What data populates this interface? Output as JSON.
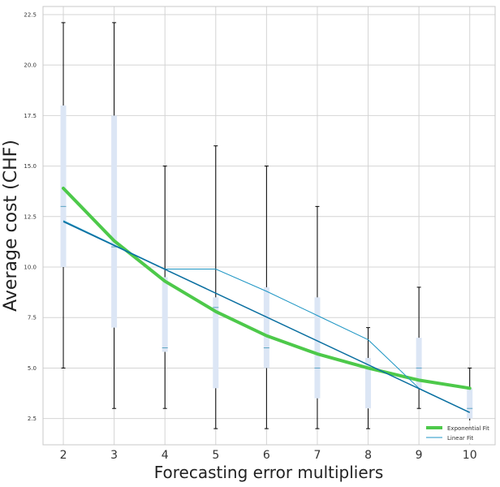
{
  "chart_data": {
    "type": "box",
    "xlabel": "Forecasting error multipliers",
    "ylabel": "Average cost (CHF)",
    "categories": [
      2,
      3,
      4,
      5,
      6,
      7,
      8,
      9,
      10
    ],
    "xlim": [
      1.6,
      10.5
    ],
    "ylim": [
      1.2,
      22.9
    ],
    "yticks": [
      2.5,
      5.0,
      7.5,
      10.0,
      12.5,
      15.0,
      17.5,
      20.0,
      22.5
    ],
    "ytick_labels": [
      "2.5",
      "5.0",
      "7.5",
      "10.0",
      "12.5",
      "15.0",
      "17.5",
      "20.0",
      "22.5"
    ],
    "grid": true,
    "legend_position": "lower-right",
    "boxes": [
      {
        "x": 2,
        "whisker_low": 5.0,
        "q1": 10.0,
        "median": 13.0,
        "q3": 18.0,
        "whisker_high": 22.1
      },
      {
        "x": 3,
        "whisker_low": 3.0,
        "q1": 7.0,
        "median": 11.0,
        "q3": 17.5,
        "whisker_high": 22.1
      },
      {
        "x": 4,
        "whisker_low": 3.0,
        "q1": 5.8,
        "median": 6.0,
        "q3": 9.5,
        "whisker_high": 15.0
      },
      {
        "x": 5,
        "whisker_low": 2.0,
        "q1": 4.0,
        "median": 8.0,
        "q3": 8.5,
        "whisker_high": 16.0
      },
      {
        "x": 6,
        "whisker_low": 2.0,
        "q1": 5.0,
        "median": 6.0,
        "q3": 9.0,
        "whisker_high": 15.0
      },
      {
        "x": 7,
        "whisker_low": 2.0,
        "q1": 3.5,
        "median": 5.0,
        "q3": 8.5,
        "whisker_high": 13.0
      },
      {
        "x": 8,
        "whisker_low": 2.0,
        "q1": 3.0,
        "median": 5.0,
        "q3": 5.5,
        "whisker_high": 7.0
      },
      {
        "x": 9,
        "whisker_low": 3.0,
        "q1": 4.0,
        "median": 5.0,
        "q3": 6.5,
        "whisker_high": 9.0
      },
      {
        "x": 10,
        "whisker_low": 2.0,
        "q1": 2.5,
        "median": 3.0,
        "q3": 4.0,
        "whisker_high": 5.0
      }
    ],
    "series": [
      {
        "name": "Exponential Fit",
        "style": "thick-line",
        "color": "#4dc94a",
        "x": [
          2,
          3,
          4,
          5,
          6,
          7,
          8,
          9,
          10
        ],
        "y": [
          13.9,
          11.3,
          9.3,
          7.8,
          6.6,
          5.7,
          5.0,
          4.4,
          4.0
        ]
      },
      {
        "name": "Linear Fit",
        "style": "thin-line",
        "color": "#1f96c4",
        "x": [
          2,
          3,
          4,
          5,
          6,
          7,
          8,
          9,
          10
        ],
        "y": [
          12.3,
          11.1,
          9.9,
          9.9,
          8.8,
          7.6,
          6.4,
          4.0,
          2.8
        ]
      }
    ],
    "trend_line": {
      "color": "#0a6fa0",
      "x": [
        2,
        10
      ],
      "y": [
        12.25,
        2.8
      ]
    },
    "colors": {
      "box_fill": "#dce6f5",
      "box_median": "#5ba3c2",
      "whisker": "#000000",
      "grid": "#d4d4d4",
      "axes_edge": "#c8c8c8",
      "tick_text": "#333333",
      "label_text": "#222222"
    }
  }
}
